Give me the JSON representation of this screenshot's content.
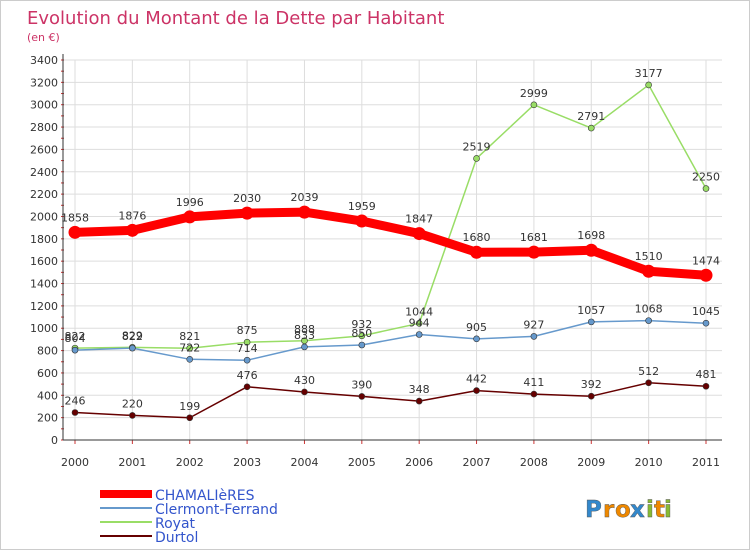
{
  "chart_data": {
    "type": "line",
    "title": "Evolution du Montant de la Dette par Habitant",
    "subtitle": "(en €)",
    "xlabel": "",
    "ylabel": "",
    "ylim": [
      0,
      3400
    ],
    "yticks": [
      0,
      200,
      400,
      600,
      800,
      1000,
      1200,
      1400,
      1600,
      1800,
      2000,
      2200,
      2400,
      2600,
      2800,
      3000,
      3200,
      3400
    ],
    "grid": true,
    "legend": "bottom-left",
    "categories": [
      "2000",
      "2001",
      "2002",
      "2003",
      "2004",
      "2005",
      "2006",
      "2007",
      "2008",
      "2009",
      "2010",
      "2011"
    ],
    "series": [
      {
        "name": "CHAMALIèRES",
        "color": "#ff0000",
        "emphasis": true,
        "values": [
          1858,
          1876,
          1996,
          2030,
          2039,
          1959,
          1847,
          1680,
          1681,
          1698,
          1510,
          1474
        ]
      },
      {
        "name": "Clermont-Ferrand",
        "color": "#6699cc",
        "values": [
          804,
          822,
          722,
          714,
          833,
          850,
          944,
          905,
          927,
          1057,
          1068,
          1045
        ]
      },
      {
        "name": "Royat",
        "color": "#99dd66",
        "values": [
          822,
          829,
          821,
          875,
          888,
          932,
          1044,
          2519,
          2999,
          2791,
          3177,
          2250
        ]
      },
      {
        "name": "Durtol",
        "color": "#660000",
        "values": [
          246,
          220,
          199,
          476,
          430,
          390,
          348,
          442,
          411,
          392,
          512,
          481
        ]
      }
    ]
  },
  "brand": {
    "name": "Proxiti",
    "letters": [
      "P",
      "r",
      "o",
      "x",
      "i",
      "t",
      "i"
    ],
    "colors": [
      "#3388cc",
      "#ee8800",
      "#ee8800",
      "#3388cc",
      "#88bb33",
      "#ee8800",
      "#88bb33"
    ]
  }
}
